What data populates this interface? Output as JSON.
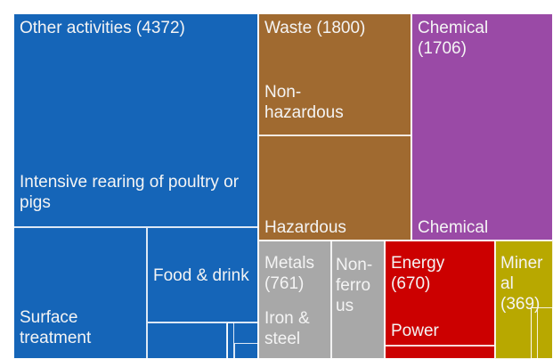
{
  "chart_data": {
    "type": "treemap",
    "groups": [
      {
        "label": "Other activities (4372)",
        "value": 4372,
        "color": "#1565b8",
        "children": [
          "Intensive rearing of poultry or pigs",
          "Surface treatment",
          "Food & drink"
        ]
      },
      {
        "label": "Waste (1800)",
        "value": 1800,
        "color": "#a06a30",
        "children": [
          "Non-hazardous",
          "Hazardous"
        ]
      },
      {
        "label": "Chemical (1706)",
        "value": 1706,
        "color": "#9a4aa6",
        "children": [
          "Chemical"
        ]
      },
      {
        "label": "Metals (761)",
        "value": 761,
        "color": "#a8a8a8",
        "children": [
          "Iron & steel",
          "Non-ferrous"
        ]
      },
      {
        "label": "Energy (670)",
        "value": 670,
        "color": "#cc0000",
        "children": [
          "Power"
        ]
      },
      {
        "label": "Mineral (369)",
        "value": 369,
        "color": "#b8a800",
        "children": []
      }
    ]
  }
}
